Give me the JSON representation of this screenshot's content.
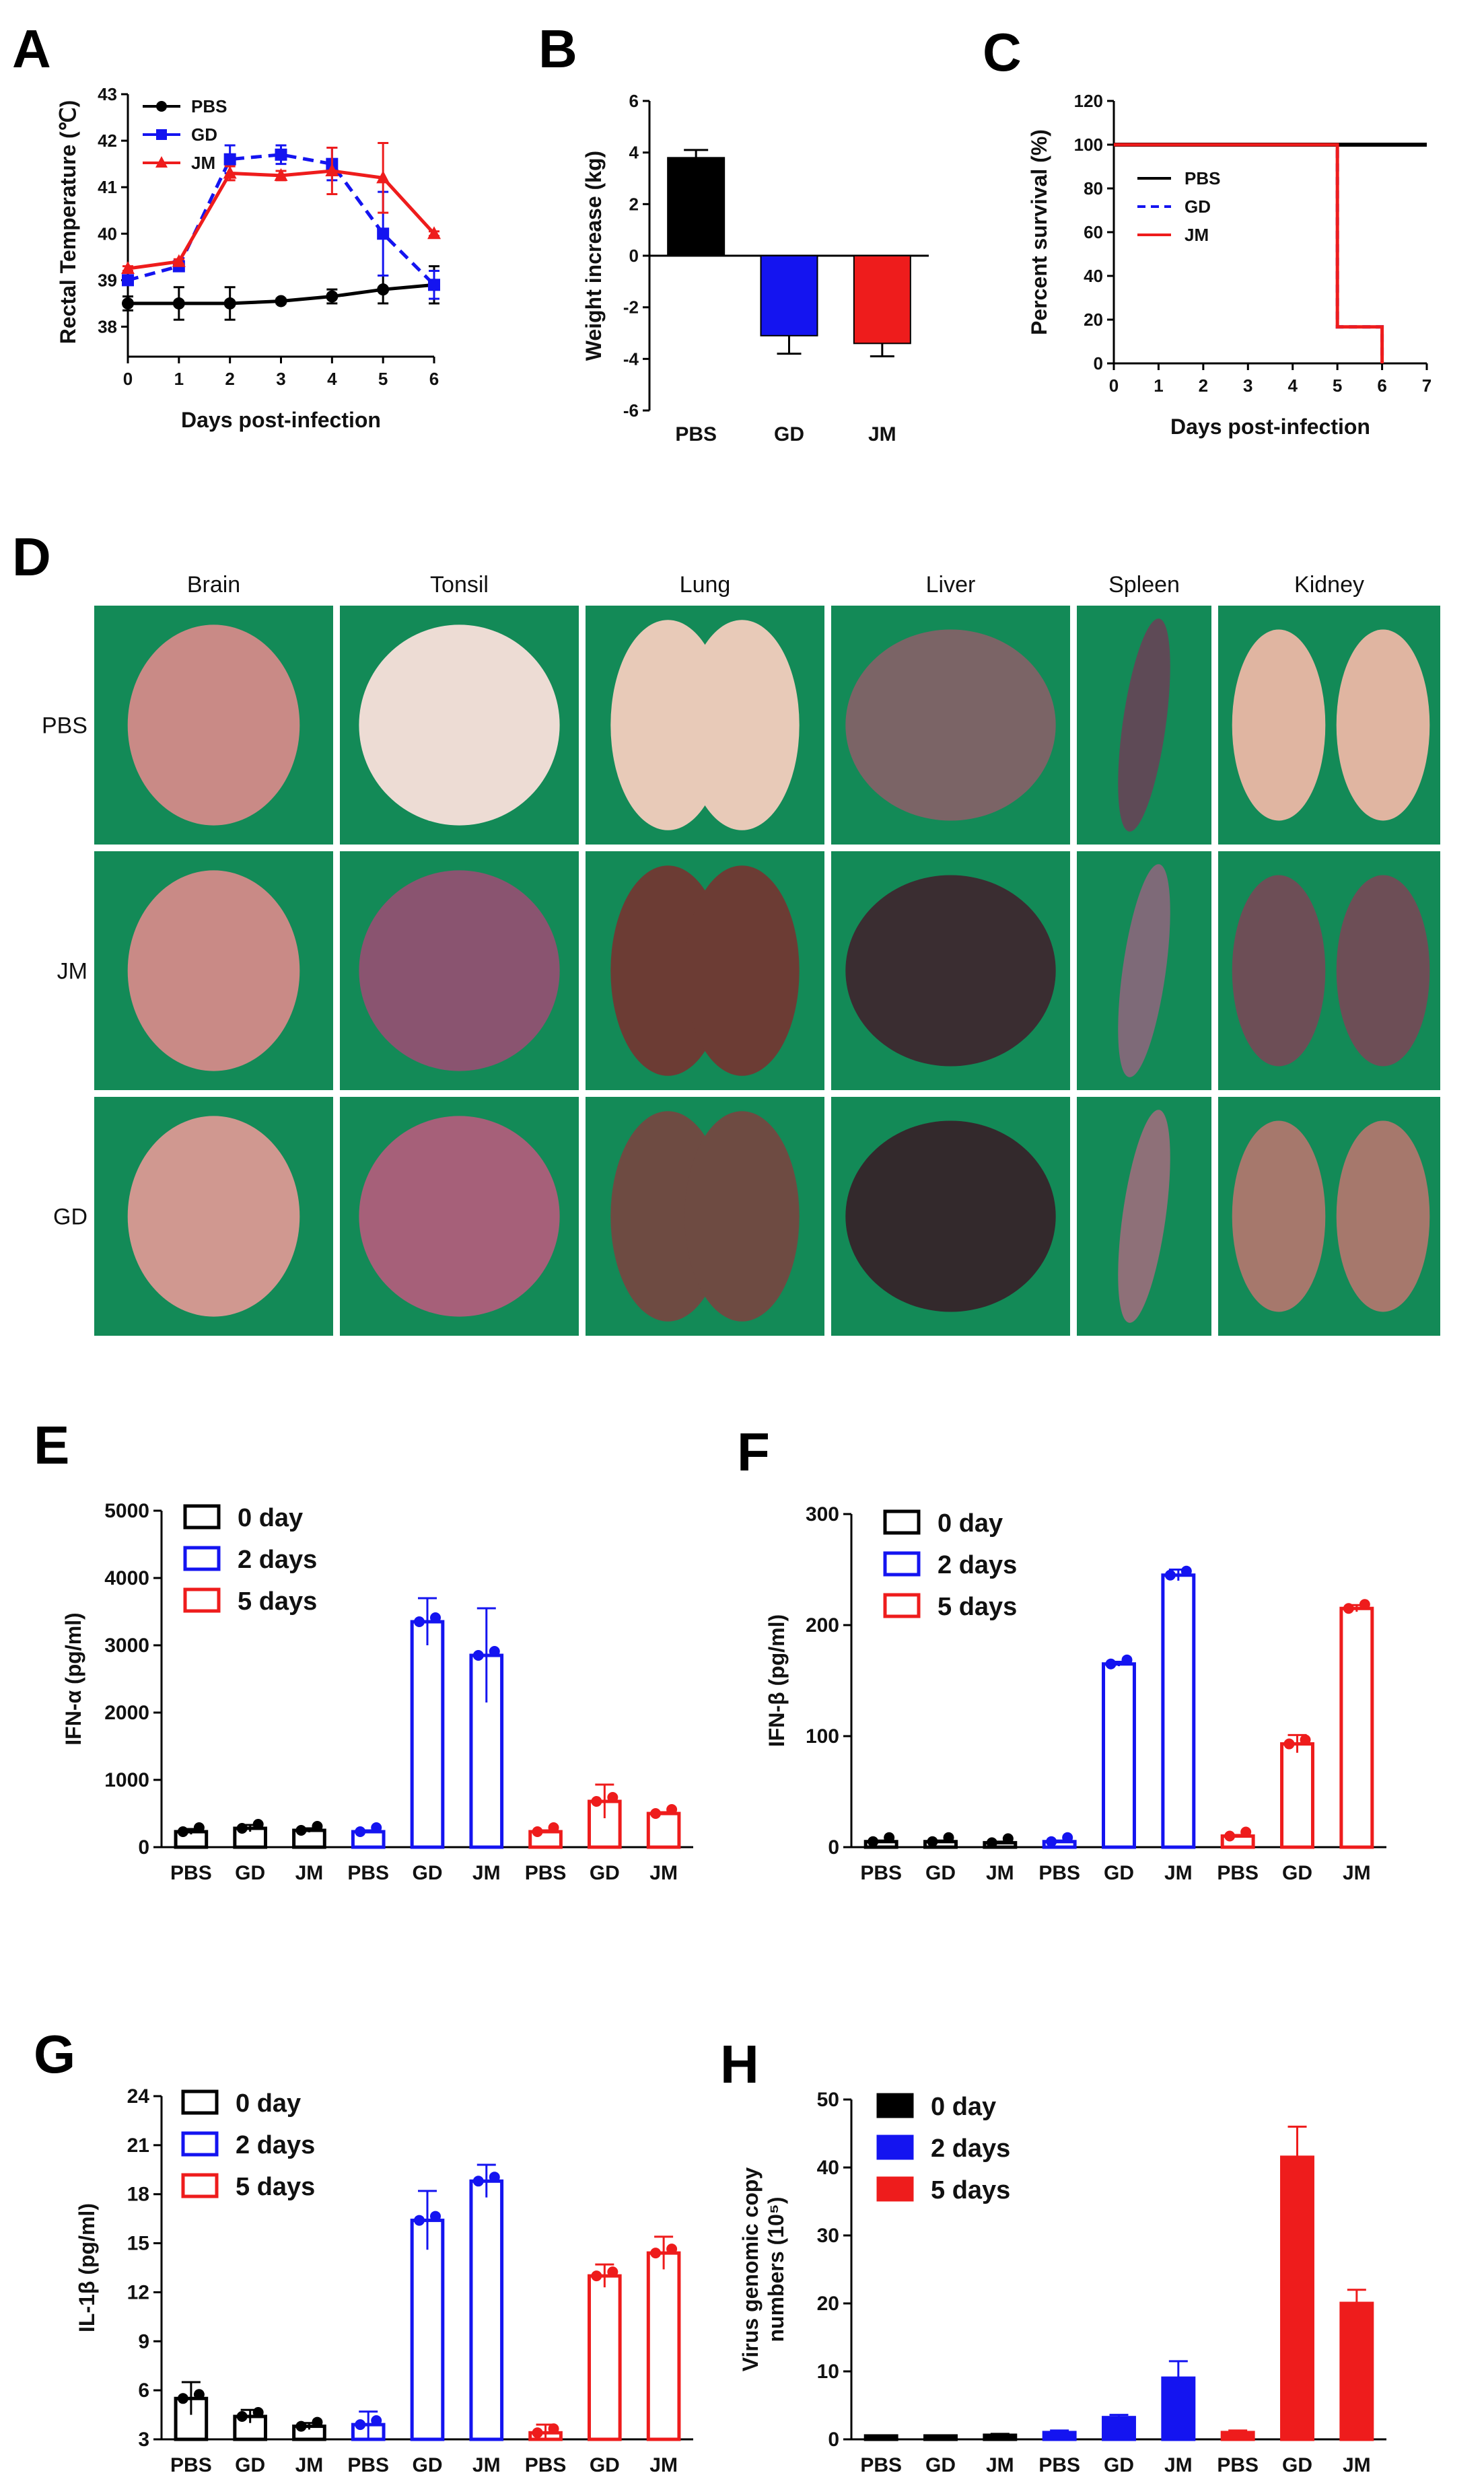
{
  "colors": {
    "pbs": "#000000",
    "gd": "#1414f0",
    "jm": "#ee1c1c",
    "organ_bg": "#138a57"
  },
  "panel_A": {
    "letter": "A",
    "chart_data": {
      "type": "line",
      "xlabel": "Days post-infection",
      "ylabel": "Rectal Temperature (℃)",
      "x": [
        0,
        1,
        2,
        3,
        4,
        5,
        6
      ],
      "xlim": [
        0,
        6
      ],
      "ylim": [
        37.5,
        43
      ],
      "xticks": [
        "0",
        "1",
        "2",
        "3",
        "4",
        "5",
        "6"
      ],
      "yticks": [
        "38",
        "39",
        "40",
        "41",
        "42",
        "43"
      ],
      "series": [
        {
          "name": "PBS",
          "values": [
            38.5,
            38.5,
            38.5,
            38.55,
            38.65,
            38.8,
            38.9
          ],
          "errors": [
            0.15,
            0.35,
            0.35,
            0.05,
            0.15,
            0.3,
            0.4
          ]
        },
        {
          "name": "GD",
          "values": [
            39.0,
            39.3,
            41.6,
            41.7,
            41.5,
            40.0,
            38.9
          ],
          "errors": [
            0.1,
            0.1,
            0.3,
            0.2,
            0.35,
            0.9,
            0.3
          ]
        },
        {
          "name": "JM",
          "values": [
            39.25,
            39.4,
            41.3,
            41.25,
            41.35,
            41.2,
            40.0
          ],
          "errors": [
            0.05,
            0.05,
            0.15,
            0.1,
            0.5,
            0.75,
            0.05
          ]
        }
      ]
    }
  },
  "panel_B": {
    "letter": "B",
    "chart_data": {
      "type": "bar",
      "categories": [
        "PBS",
        "GD",
        "JM"
      ],
      "values": [
        3.8,
        -3.1,
        -3.4
      ],
      "errors": [
        0.3,
        0.7,
        0.5
      ],
      "ylabel": "Weight increase (kg)",
      "ylim": [
        -6,
        6
      ],
      "yticks": [
        "-6",
        "-4",
        "-2",
        "0",
        "2",
        "4",
        "6"
      ]
    }
  },
  "panel_C": {
    "letter": "C",
    "chart_data": {
      "type": "line",
      "xlabel": "Days post-infection",
      "ylabel": "Percent survival (%)",
      "xlim": [
        0,
        7
      ],
      "ylim": [
        0,
        120
      ],
      "xticks": [
        "0",
        "1",
        "2",
        "3",
        "4",
        "5",
        "6",
        "7"
      ],
      "yticks": [
        "0",
        "20",
        "40",
        "60",
        "80",
        "100",
        "120"
      ],
      "series": [
        {
          "name": "PBS",
          "steps": [
            [
              0,
              100
            ],
            [
              7,
              100
            ]
          ]
        },
        {
          "name": "GD",
          "steps": [
            [
              0,
              100
            ],
            [
              5,
              100
            ],
            [
              5,
              16.7
            ],
            [
              6,
              16.7
            ],
            [
              6,
              0
            ]
          ]
        },
        {
          "name": "JM",
          "steps": [
            [
              0,
              100
            ],
            [
              5,
              100
            ],
            [
              5,
              16.7
            ],
            [
              6,
              16.7
            ],
            [
              6,
              0
            ]
          ]
        }
      ]
    }
  },
  "panel_D": {
    "letter": "D",
    "columns": [
      "Brain",
      "Tonsil",
      "Lung",
      "Liver",
      "Spleen",
      "Kidney"
    ],
    "rows": [
      "PBS",
      "JM",
      "GD"
    ]
  },
  "panel_E": {
    "letter": "E",
    "chart_data": {
      "type": "bar",
      "categories": [
        "PBS",
        "GD",
        "JM",
        "PBS",
        "GD",
        "JM",
        "PBS",
        "GD",
        "JM"
      ],
      "groups": [
        "0 day",
        "0 day",
        "0 day",
        "2 days",
        "2 days",
        "2 days",
        "5 days",
        "5 days",
        "5 days"
      ],
      "values": [
        230,
        280,
        250,
        230,
        3350,
        2850,
        230,
        680,
        500
      ],
      "errors": [
        40,
        50,
        30,
        20,
        350,
        700,
        20,
        250,
        20
      ],
      "ylabel": "IFN-α (pg/ml)",
      "ylim": [
        0,
        5000
      ],
      "yticks": [
        "0",
        "1000",
        "2000",
        "3000",
        "4000",
        "5000"
      ],
      "legend": [
        "0 day",
        "2 days",
        "5 days"
      ]
    }
  },
  "panel_F": {
    "letter": "F",
    "chart_data": {
      "type": "bar",
      "categories": [
        "PBS",
        "GD",
        "JM",
        "PBS",
        "GD",
        "JM",
        "PBS",
        "GD",
        "JM"
      ],
      "groups": [
        "0 day",
        "0 day",
        "0 day",
        "2 days",
        "2 days",
        "2 days",
        "5 days",
        "5 days",
        "5 days"
      ],
      "values": [
        5,
        5,
        4,
        5,
        165,
        245,
        10,
        93,
        215
      ],
      "errors": [
        1,
        1,
        1,
        1,
        2,
        5,
        1,
        8,
        3
      ],
      "ylabel": "IFN-β (pg/ml)",
      "ylim": [
        0,
        300
      ],
      "yticks": [
        "0",
        "100",
        "200",
        "300"
      ],
      "legend": [
        "0 day",
        "2 days",
        "5 days"
      ]
    }
  },
  "panel_G": {
    "letter": "G",
    "chart_data": {
      "type": "bar",
      "categories": [
        "PBS",
        "GD",
        "JM",
        "PBS",
        "GD",
        "JM",
        "PBS",
        "GD",
        "JM"
      ],
      "groups": [
        "0 day",
        "0 day",
        "0 day",
        "2 days",
        "2 days",
        "2 days",
        "5 days",
        "5 days",
        "5 days"
      ],
      "values": [
        5.5,
        4.4,
        3.8,
        3.9,
        16.4,
        18.8,
        3.4,
        13.0,
        14.4
      ],
      "errors": [
        1.0,
        0.4,
        0.2,
        0.8,
        1.8,
        1.0,
        0.5,
        0.7,
        1.0
      ],
      "ylabel": "IL-1β (pg/ml)",
      "ylim": [
        3,
        24
      ],
      "yticks": [
        "3",
        "6",
        "9",
        "12",
        "15",
        "18",
        "21",
        "24"
      ],
      "legend": [
        "0 day",
        "2 days",
        "5 days"
      ]
    }
  },
  "panel_H": {
    "letter": "H",
    "chart_data": {
      "type": "bar",
      "categories": [
        "PBS",
        "GD",
        "JM",
        "PBS",
        "GD",
        "JM",
        "PBS",
        "GD",
        "JM"
      ],
      "groups": [
        "0 day",
        "0 day",
        "0 day",
        "2 days",
        "2 days",
        "2 days",
        "5 days",
        "5 days",
        "5 days"
      ],
      "values": [
        0.5,
        0.5,
        0.6,
        1.0,
        3.2,
        9.0,
        1.0,
        41.5,
        20.0
      ],
      "errors": [
        0.1,
        0.1,
        0.2,
        0.3,
        0.4,
        2.5,
        0.3,
        4.5,
        2.0
      ],
      "ylabel": "Virus genomic copy numbers (10⁵)",
      "ylabel_lines": [
        "Virus genomic copy",
        "numbers (10⁵)"
      ],
      "ylim": [
        0,
        50
      ],
      "yticks": [
        "0",
        "10",
        "20",
        "30",
        "40",
        "50"
      ],
      "legend": [
        "0 day",
        "2 days",
        "5 days"
      ]
    }
  }
}
